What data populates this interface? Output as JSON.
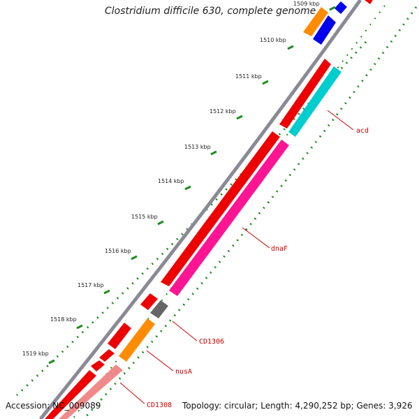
{
  "title": "Clostridium difficile 630, complete genome",
  "accession_text": "Accession: NC_009089",
  "summary_text": "Topology: circular; Length: 4,290,252 bp; Genes: 3,926",
  "scale_labels": [
    {
      "value": 1509,
      "text": "1509 kbp"
    },
    {
      "value": 1510,
      "text": "1510 kbp"
    },
    {
      "value": 1511,
      "text": "1511 kbp"
    },
    {
      "value": 1512,
      "text": "1512 kbp"
    },
    {
      "value": 1513,
      "text": "1513 kbp"
    },
    {
      "value": 1514,
      "text": "1514 kbp"
    },
    {
      "value": 1515,
      "text": "1515 kbp"
    },
    {
      "value": 1516,
      "text": "1516 kbp"
    },
    {
      "value": 1517,
      "text": "1517 kbp"
    },
    {
      "value": 1518,
      "text": "1518 kbp"
    },
    {
      "value": 1519,
      "text": "1519 kbp"
    }
  ],
  "gene_labels": [
    {
      "name": "acd",
      "color": "#cc0000"
    },
    {
      "name": "dnaF",
      "color": "#cc0000"
    },
    {
      "name": "CD1306",
      "color": "#cc0000"
    },
    {
      "name": "nusA",
      "color": "#cc0000"
    },
    {
      "name": "CD1308",
      "color": "#cc0000"
    }
  ],
  "colors": {
    "backbone": "#8a8a95",
    "tick": "#1f8a1f",
    "red": "#ee0000",
    "magenta": "#ff1493",
    "cyan": "#00cdcd",
    "orange": "#ff8c00",
    "blue": "#0000ee",
    "gray": "#666666",
    "pink": "#f08a8a"
  }
}
